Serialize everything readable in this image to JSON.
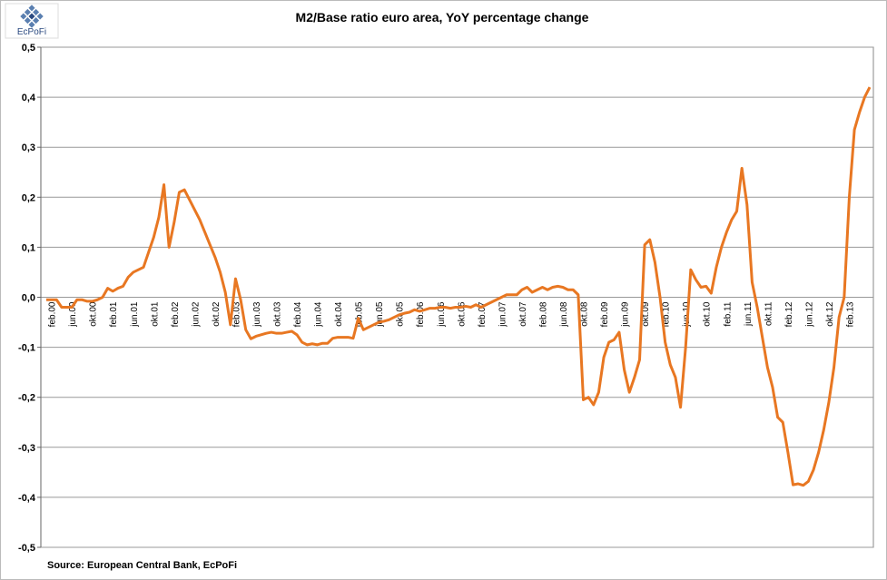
{
  "logo": "EcPoFi",
  "chart_data": {
    "type": "line",
    "title": "M2/Base ratio euro area, YoY percentage change",
    "source": "Source: European  Central Bank, EcPoFi",
    "categories": [
      null,
      "feb.00",
      null,
      null,
      null,
      "jun.00",
      null,
      null,
      null,
      "okt.00",
      null,
      null,
      null,
      "feb.01",
      null,
      null,
      null,
      "jun.01",
      null,
      null,
      null,
      "okt.01",
      null,
      null,
      null,
      "feb.02",
      null,
      null,
      null,
      "jun.02",
      null,
      null,
      null,
      "okt.02",
      null,
      null,
      null,
      "feb.03",
      null,
      null,
      null,
      "jun.03",
      null,
      null,
      null,
      "okt.03",
      null,
      null,
      null,
      "feb.04",
      null,
      null,
      null,
      "jun.04",
      null,
      null,
      null,
      "okt.04",
      null,
      null,
      null,
      "feb.05",
      null,
      null,
      null,
      "jun.05",
      null,
      null,
      null,
      "okt.05",
      null,
      null,
      null,
      "feb.06",
      null,
      null,
      null,
      "jun.06",
      null,
      null,
      null,
      "okt.06",
      null,
      null,
      null,
      "feb.07",
      null,
      null,
      null,
      "jun.07",
      null,
      null,
      null,
      "okt.07",
      null,
      null,
      null,
      "feb.08",
      null,
      null,
      null,
      "jun.08",
      null,
      null,
      null,
      "okt.08",
      null,
      null,
      null,
      "feb.09",
      null,
      null,
      null,
      "jun.09",
      null,
      null,
      null,
      "okt.09",
      null,
      null,
      null,
      "feb.10",
      null,
      null,
      null,
      "jun.10",
      null,
      null,
      null,
      "okt.10",
      null,
      null,
      null,
      "feb.11",
      null,
      null,
      null,
      "jun.11",
      null,
      null,
      null,
      "okt.11",
      null,
      null,
      null,
      "feb.12",
      null,
      null,
      null,
      "jun.12",
      null,
      null,
      null,
      "okt.12",
      null,
      null,
      null,
      "feb.13",
      null,
      null,
      null,
      null
    ],
    "series": [
      {
        "name": "M2/Base ratio",
        "color": "#e87722",
        "values": [
          -0.005,
          -0.005,
          -0.005,
          -0.02,
          -0.02,
          -0.02,
          -0.005,
          -0.005,
          -0.008,
          -0.008,
          -0.005,
          0.0,
          0.018,
          0.012,
          0.018,
          0.022,
          0.04,
          0.05,
          0.055,
          0.06,
          0.09,
          0.12,
          0.16,
          0.225,
          0.1,
          0.15,
          0.21,
          0.215,
          0.195,
          0.175,
          0.155,
          0.13,
          0.105,
          0.08,
          0.05,
          0.01,
          -0.055,
          0.037,
          -0.005,
          -0.065,
          -0.083,
          -0.078,
          -0.075,
          -0.072,
          -0.07,
          -0.072,
          -0.072,
          -0.07,
          -0.068,
          -0.075,
          -0.09,
          -0.095,
          -0.093,
          -0.095,
          -0.092,
          -0.092,
          -0.082,
          -0.08,
          -0.08,
          -0.08,
          -0.082,
          -0.042,
          -0.065,
          -0.06,
          -0.055,
          -0.05,
          -0.048,
          -0.045,
          -0.04,
          -0.035,
          -0.032,
          -0.03,
          -0.025,
          -0.028,
          -0.025,
          -0.022,
          -0.022,
          -0.02,
          -0.02,
          -0.022,
          -0.02,
          -0.02,
          -0.018,
          -0.02,
          -0.015,
          -0.02,
          -0.015,
          -0.01,
          -0.005,
          0.0,
          0.005,
          0.005,
          0.005,
          0.015,
          0.02,
          0.01,
          0.015,
          0.02,
          0.015,
          0.02,
          0.022,
          0.02,
          0.015,
          0.015,
          0.005,
          -0.205,
          -0.2,
          -0.215,
          -0.19,
          -0.12,
          -0.09,
          -0.085,
          -0.07,
          -0.145,
          -0.19,
          -0.16,
          -0.125,
          0.105,
          0.115,
          0.07,
          0.0,
          -0.09,
          -0.135,
          -0.16,
          -0.22,
          -0.1,
          0.055,
          0.035,
          0.02,
          0.022,
          0.008,
          0.06,
          0.1,
          0.13,
          0.155,
          0.172,
          0.258,
          0.185,
          0.03,
          -0.02,
          -0.08,
          -0.14,
          -0.18,
          -0.24,
          -0.25,
          -0.31,
          -0.375,
          -0.373,
          -0.376,
          -0.368,
          -0.345,
          -0.31,
          -0.265,
          -0.21,
          -0.14,
          -0.04,
          0.0,
          0.2,
          0.335,
          0.37,
          0.4,
          0.42
        ]
      }
    ],
    "ylim": [
      -0.5,
      0.5
    ],
    "yticks": [
      {
        "value": 0.5,
        "label": "0,5"
      },
      {
        "value": 0.4,
        "label": "0,4"
      },
      {
        "value": 0.3,
        "label": "0,3"
      },
      {
        "value": 0.2,
        "label": "0,2"
      },
      {
        "value": 0.1,
        "label": "0,1"
      },
      {
        "value": 0.0,
        "label": "0,0"
      },
      {
        "value": -0.1,
        "label": "-0,1"
      },
      {
        "value": -0.2,
        "label": "-0,2"
      },
      {
        "value": -0.3,
        "label": "-0,3"
      },
      {
        "value": -0.4,
        "label": "-0,4"
      },
      {
        "value": -0.5,
        "label": "-0,5"
      }
    ],
    "grid": true
  }
}
